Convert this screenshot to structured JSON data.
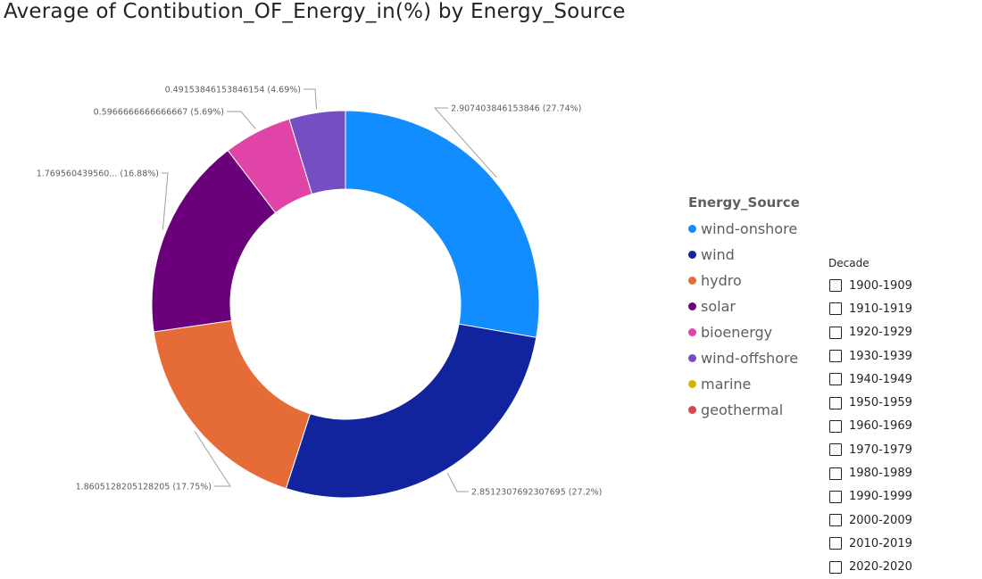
{
  "chart_data": {
    "type": "pie",
    "variant": "donut",
    "title": "Average of Contibution_OF_Energy_in(%) by Energy_Source",
    "legend_title": "Energy_Source",
    "legend_position": "right",
    "slices": [
      {
        "name": "wind-onshore",
        "value": 2.907403846153846,
        "label": "2.907403846153846 (27.74%)",
        "color": "#118DFF"
      },
      {
        "name": "wind",
        "value": 2.8512307692307695,
        "label": "2.8512307692307695 (27.2%)",
        "color": "#12239E"
      },
      {
        "name": "hydro",
        "value": 1.8605128205128205,
        "label": "1.8605128205128205 (17.75%)",
        "color": "#E66C37"
      },
      {
        "name": "solar",
        "value": 1.76956043956,
        "label": "1.769560439560... (16.88%)",
        "color": "#6B007B"
      },
      {
        "name": "bioenergy",
        "value": 0.5966666666666667,
        "label": "0.5966666666666667 (5.69%)",
        "color": "#E044A7"
      },
      {
        "name": "wind-offshore",
        "value": 0.49153846153846154,
        "label": "0.49153846153846154 (4.69%)",
        "color": "#744EC2"
      },
      {
        "name": "marine",
        "value": 0,
        "label": "",
        "color": "#D9B300"
      },
      {
        "name": "geothermal",
        "value": 0,
        "label": "",
        "color": "#D64550"
      }
    ]
  },
  "slicer": {
    "title": "Decade",
    "options": [
      "1900-1909",
      "1910-1919",
      "1920-1929",
      "1930-1939",
      "1940-1949",
      "1950-1959",
      "1960-1969",
      "1970-1979",
      "1980-1989",
      "1990-1999",
      "2000-2009",
      "2010-2019",
      "2020-2020"
    ]
  }
}
